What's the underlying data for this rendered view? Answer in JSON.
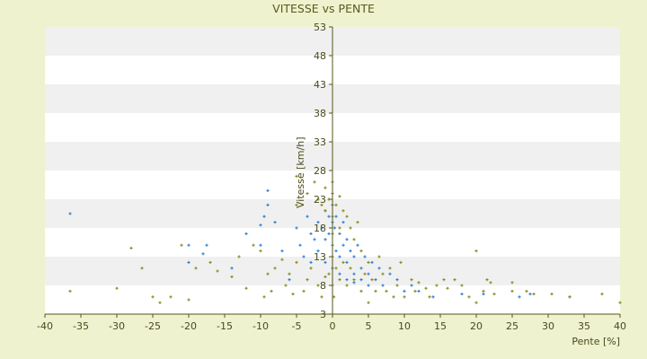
{
  "chart_data": {
    "type": "scatter",
    "title": "VITESSE vs PENTE",
    "xlabel": "Pente [%]",
    "ylabel": "Vitesse [km/h]",
    "xlim": [
      -40,
      40
    ],
    "ylim": [
      3,
      53
    ],
    "xticks": [
      -40,
      -35,
      -30,
      -25,
      -20,
      -15,
      -10,
      -5,
      0,
      5,
      10,
      15,
      20,
      25,
      30,
      35,
      40
    ],
    "yticks": [
      3,
      8,
      13,
      18,
      23,
      28,
      33,
      38,
      43,
      48,
      53
    ],
    "grid": "alternating horizontal bands",
    "legend": "none",
    "colors": {
      "background": "#eef2cf",
      "band_light": "#ffffff",
      "band_dark": "#f0f0f0",
      "axis": "#55551a",
      "series_blue": "#2a7fd4",
      "series_olive": "#8a8a1a"
    },
    "series": [
      {
        "color": "#2a7fd4",
        "points": [
          [
            -36.5,
            20.5
          ],
          [
            -20,
            15
          ],
          [
            -20,
            12
          ],
          [
            -18,
            13.5
          ],
          [
            -17.5,
            15
          ],
          [
            -14,
            11
          ],
          [
            -12,
            17
          ],
          [
            -10,
            18.5
          ],
          [
            -10,
            15
          ],
          [
            -9.5,
            20
          ],
          [
            -9,
            22
          ],
          [
            -9,
            24.5
          ],
          [
            -8,
            19
          ],
          [
            -7,
            14
          ],
          [
            -6,
            9
          ],
          [
            -5,
            18
          ],
          [
            -4.5,
            15
          ],
          [
            -4,
            13
          ],
          [
            -3.5,
            20
          ],
          [
            -3,
            17
          ],
          [
            -3,
            12
          ],
          [
            -2.5,
            16
          ],
          [
            -2,
            19
          ],
          [
            -2,
            14
          ],
          [
            -1.5,
            18
          ],
          [
            -1,
            21
          ],
          [
            -1,
            16
          ],
          [
            -1,
            12
          ],
          [
            -0.5,
            20
          ],
          [
            -0.5,
            17
          ],
          [
            0,
            22
          ],
          [
            0,
            19
          ],
          [
            0,
            15
          ],
          [
            0,
            11
          ],
          [
            0.3,
            18
          ],
          [
            0.5,
            20
          ],
          [
            0.5,
            14
          ],
          [
            1,
            17
          ],
          [
            1,
            13
          ],
          [
            1,
            10
          ],
          [
            1.5,
            19
          ],
          [
            1.5,
            15
          ],
          [
            2,
            16
          ],
          [
            2,
            12
          ],
          [
            2,
            9
          ],
          [
            2.5,
            14
          ],
          [
            3,
            13
          ],
          [
            3,
            10
          ],
          [
            3,
            8.5
          ],
          [
            3.5,
            15
          ],
          [
            4,
            11
          ],
          [
            4,
            9
          ],
          [
            4.5,
            13
          ],
          [
            5,
            10
          ],
          [
            5,
            8
          ],
          [
            5.5,
            12
          ],
          [
            6,
            9
          ],
          [
            6.5,
            11
          ],
          [
            7,
            8
          ],
          [
            8,
            10
          ],
          [
            9,
            9
          ],
          [
            10,
            7
          ],
          [
            11,
            8
          ],
          [
            12,
            7
          ],
          [
            14,
            6
          ],
          [
            18,
            6.5
          ],
          [
            21,
            6.5
          ],
          [
            26,
            6
          ],
          [
            27.5,
            6.5
          ],
          [
            33,
            6
          ]
        ]
      },
      {
        "color": "#8a8a1a",
        "points": [
          [
            -36.5,
            7
          ],
          [
            -30,
            7.5
          ],
          [
            -28,
            14.5
          ],
          [
            -26.5,
            11
          ],
          [
            -25,
            6
          ],
          [
            -24,
            5
          ],
          [
            -22.5,
            6
          ],
          [
            -21,
            15
          ],
          [
            -20,
            5.5
          ],
          [
            -19,
            11
          ],
          [
            -17,
            12
          ],
          [
            -16,
            10.5
          ],
          [
            -14,
            9.5
          ],
          [
            -13,
            13
          ],
          [
            -12,
            7.5
          ],
          [
            -11,
            15
          ],
          [
            -10,
            14
          ],
          [
            -9.5,
            6
          ],
          [
            -9,
            10
          ],
          [
            -8.5,
            7
          ],
          [
            -8,
            11
          ],
          [
            -7,
            12.5
          ],
          [
            -6.5,
            8
          ],
          [
            -6,
            10
          ],
          [
            -5.5,
            6.5
          ],
          [
            -5,
            27
          ],
          [
            -5,
            22
          ],
          [
            -5,
            12
          ],
          [
            -4,
            7
          ],
          [
            -3.5,
            24
          ],
          [
            -3.5,
            9
          ],
          [
            -3,
            11
          ],
          [
            -2.5,
            26
          ],
          [
            -2,
            23
          ],
          [
            -2,
            8
          ],
          [
            -1.5,
            22
          ],
          [
            -1.5,
            6
          ],
          [
            -1,
            25
          ],
          [
            -1,
            21
          ],
          [
            -1,
            9.5
          ],
          [
            -0.5,
            23
          ],
          [
            -0.5,
            10
          ],
          [
            0,
            26
          ],
          [
            0,
            24
          ],
          [
            0,
            20
          ],
          [
            0,
            17
          ],
          [
            0,
            13
          ],
          [
            0,
            8
          ],
          [
            0.2,
            6
          ],
          [
            0.5,
            22
          ],
          [
            0.5,
            11
          ],
          [
            1,
            23.5
          ],
          [
            1,
            18
          ],
          [
            1,
            9
          ],
          [
            1.5,
            21
          ],
          [
            1.5,
            12
          ],
          [
            2,
            20
          ],
          [
            2,
            8
          ],
          [
            2.5,
            18
          ],
          [
            2.5,
            11
          ],
          [
            3,
            16
          ],
          [
            3,
            9
          ],
          [
            3.5,
            19
          ],
          [
            4,
            14
          ],
          [
            4,
            7
          ],
          [
            4.5,
            10
          ],
          [
            5,
            12
          ],
          [
            5,
            5
          ],
          [
            5.5,
            9
          ],
          [
            6,
            7
          ],
          [
            6.5,
            13
          ],
          [
            7,
            10
          ],
          [
            7.5,
            7
          ],
          [
            8,
            11
          ],
          [
            8.5,
            6
          ],
          [
            9,
            8
          ],
          [
            9.5,
            12
          ],
          [
            10,
            6
          ],
          [
            11,
            9
          ],
          [
            11.5,
            7
          ],
          [
            12,
            8.5
          ],
          [
            13,
            7.5
          ],
          [
            13.5,
            6
          ],
          [
            14.5,
            8
          ],
          [
            15.5,
            9
          ],
          [
            16,
            7.5
          ],
          [
            17,
            9
          ],
          [
            18,
            8
          ],
          [
            19,
            6
          ],
          [
            20,
            14
          ],
          [
            20,
            5
          ],
          [
            21,
            7
          ],
          [
            21.5,
            9
          ],
          [
            22,
            8.5
          ],
          [
            22.5,
            6.5
          ],
          [
            25,
            7
          ],
          [
            25,
            8.5
          ],
          [
            27,
            7
          ],
          [
            28,
            6.5
          ],
          [
            30.5,
            6.5
          ],
          [
            33,
            6
          ],
          [
            37.5,
            6.5
          ],
          [
            40,
            5
          ]
        ]
      }
    ]
  }
}
